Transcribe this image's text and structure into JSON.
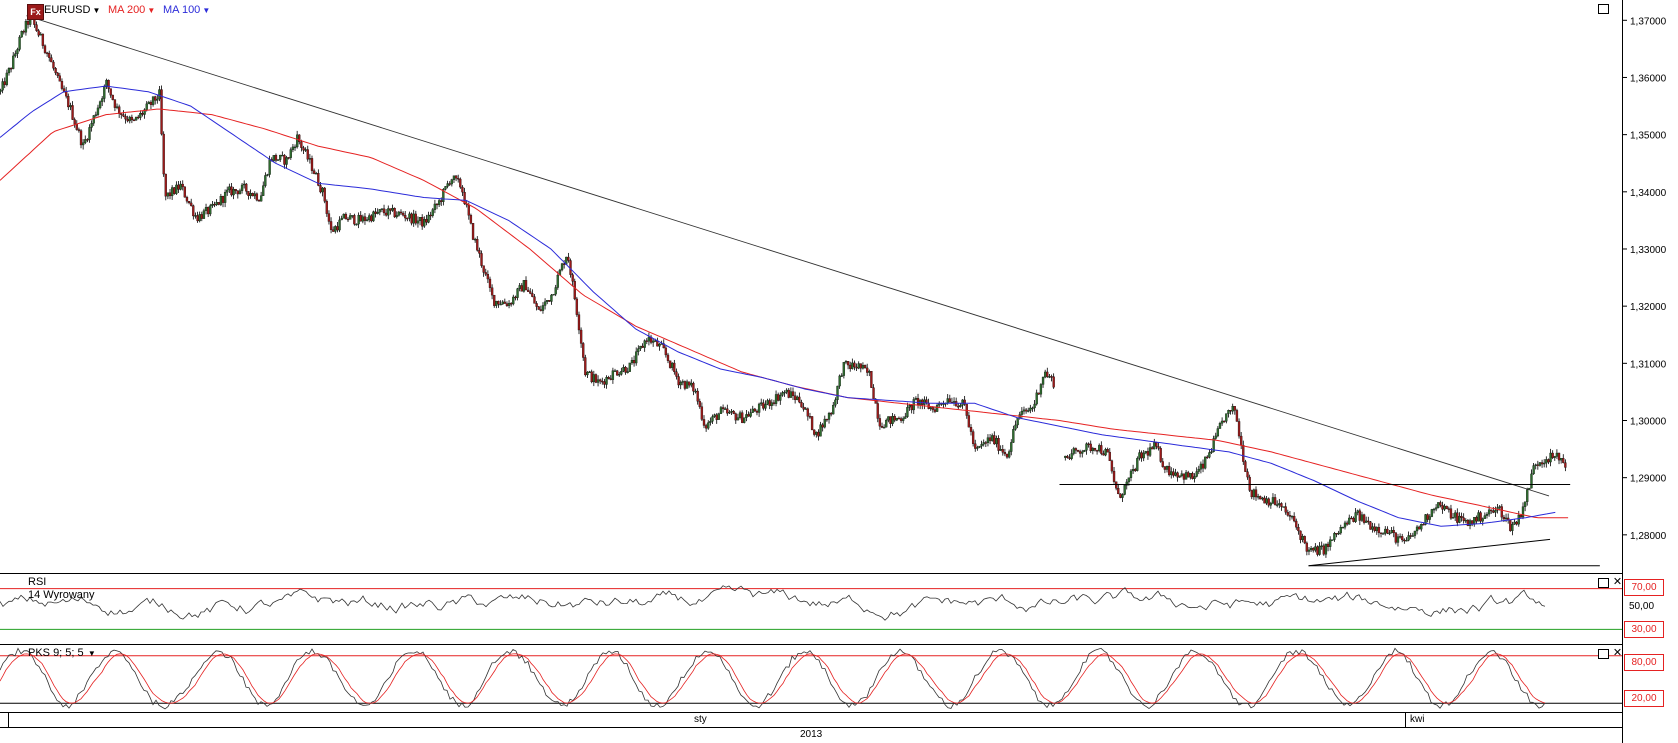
{
  "header": {
    "symbol": "EURUSD",
    "fx_logo": "Fx",
    "ma200_label": "MA 200",
    "ma100_label": "MA 100"
  },
  "rsi": {
    "title": "RSI",
    "subtitle": "14 Wyrowany",
    "levels": [
      "70,00",
      "50,00",
      "30,00"
    ]
  },
  "stoch": {
    "title": "PKS 9; 5; 5",
    "levels": [
      "80,00",
      "20,00"
    ]
  },
  "x_axis": {
    "sty": "sty",
    "kwi": "kwi",
    "year": "2013"
  },
  "colors": {
    "ma200": "#e52222",
    "ma100": "#2b2bd9",
    "up_candle": "#2e6b2e",
    "down_candle": "#9b1a1a",
    "rsi_high": "#e52222",
    "rsi_low": "#22a022"
  },
  "chart_data": {
    "type": "candlestick",
    "y_ticks": [
      "1,37000",
      "1,36000",
      "1,35000",
      "1,34000",
      "1,33000",
      "1,32000",
      "1,31000",
      "1,30000",
      "1,29000",
      "1,28000"
    ],
    "ylim": [
      1.2735,
      1.3725
    ],
    "close_path": [
      [
        0,
        1.3575
      ],
      [
        10,
        1.362
      ],
      [
        20,
        1.3675
      ],
      [
        28,
        1.3705
      ],
      [
        35,
        1.368
      ],
      [
        45,
        1.364
      ],
      [
        55,
        1.359
      ],
      [
        65,
        1.355
      ],
      [
        78,
        1.348
      ],
      [
        88,
        1.353
      ],
      [
        100,
        1.359
      ],
      [
        110,
        1.3545
      ],
      [
        125,
        1.352
      ],
      [
        140,
        1.355
      ],
      [
        150,
        1.357
      ],
      [
        155,
        1.339
      ],
      [
        170,
        1.341
      ],
      [
        185,
        1.3355
      ],
      [
        200,
        1.337
      ],
      [
        215,
        1.34
      ],
      [
        230,
        1.3405
      ],
      [
        245,
        1.339
      ],
      [
        255,
        1.346
      ],
      [
        270,
        1.3455
      ],
      [
        280,
        1.3495
      ],
      [
        295,
        1.344
      ],
      [
        305,
        1.3395
      ],
      [
        312,
        1.333
      ],
      [
        325,
        1.3355
      ],
      [
        340,
        1.335
      ],
      [
        360,
        1.3365
      ],
      [
        380,
        1.336
      ],
      [
        400,
        1.3345
      ],
      [
        415,
        1.3385
      ],
      [
        425,
        1.3425
      ],
      [
        435,
        1.341
      ],
      [
        445,
        1.333
      ],
      [
        455,
        1.327
      ],
      [
        465,
        1.321
      ],
      [
        480,
        1.3205
      ],
      [
        495,
        1.324
      ],
      [
        508,
        1.319
      ],
      [
        520,
        1.322
      ],
      [
        535,
        1.3295
      ],
      [
        545,
        1.318
      ],
      [
        552,
        1.3085
      ],
      [
        565,
        1.3065
      ],
      [
        580,
        1.3085
      ],
      [
        595,
        1.3095
      ],
      [
        610,
        1.3145
      ],
      [
        625,
        1.3125
      ],
      [
        640,
        1.307
      ],
      [
        655,
        1.3055
      ],
      [
        665,
        1.299
      ],
      [
        680,
        1.3015
      ],
      [
        700,
        1.3005
      ],
      [
        720,
        1.3025
      ],
      [
        740,
        1.305
      ],
      [
        755,
        1.3035
      ],
      [
        770,
        1.2975
      ],
      [
        785,
        1.302
      ],
      [
        795,
        1.3095
      ],
      [
        810,
        1.3095
      ],
      [
        820,
        1.308
      ],
      [
        830,
        1.2995
      ],
      [
        850,
        1.3005
      ],
      [
        865,
        1.3035
      ],
      [
        880,
        1.302
      ],
      [
        895,
        1.304
      ],
      [
        910,
        1.3025
      ],
      [
        920,
        1.2945
      ],
      [
        935,
        1.297
      ],
      [
        950,
        1.294
      ],
      [
        960,
        1.3005
      ],
      [
        975,
        1.3025
      ],
      [
        985,
        1.3085
      ],
      [
        995,
        1.3065
      ]
    ],
    "close_path_2": [
      [
        1005,
        1.2935
      ],
      [
        1020,
        1.295
      ],
      [
        1035,
        1.2955
      ],
      [
        1045,
        1.294
      ],
      [
        1055,
        1.2865
      ],
      [
        1065,
        1.2895
      ],
      [
        1075,
        1.2935
      ],
      [
        1090,
        1.2955
      ],
      [
        1100,
        1.2915
      ],
      [
        1115,
        1.2905
      ],
      [
        1125,
        1.29
      ],
      [
        1135,
        1.292
      ],
      [
        1145,
        1.296
      ],
      [
        1155,
        1.3005
      ],
      [
        1165,
        1.302
      ],
      [
        1172,
        1.2945
      ],
      [
        1180,
        1.2875
      ],
      [
        1190,
        1.2865
      ],
      [
        1205,
        1.2855
      ],
      [
        1220,
        1.2825
      ],
      [
        1235,
        1.277
      ],
      [
        1250,
        1.2775
      ],
      [
        1265,
        1.281
      ],
      [
        1280,
        1.2835
      ],
      [
        1295,
        1.2815
      ],
      [
        1310,
        1.2805
      ],
      [
        1325,
        1.2785
      ],
      [
        1340,
        1.2815
      ],
      [
        1355,
        1.2855
      ],
      [
        1370,
        1.2835
      ],
      [
        1385,
        1.282
      ],
      [
        1400,
        1.2835
      ],
      [
        1415,
        1.2845
      ],
      [
        1425,
        1.2815
      ],
      [
        1432,
        1.2825
      ],
      [
        1440,
        1.2865
      ],
      [
        1448,
        1.2925
      ],
      [
        1460,
        1.2935
      ],
      [
        1470,
        1.2935
      ],
      [
        1478,
        1.2925
      ]
    ],
    "ma200": [
      [
        0,
        1.342
      ],
      [
        50,
        1.3505
      ],
      [
        100,
        1.3535
      ],
      [
        150,
        1.3545
      ],
      [
        200,
        1.3535
      ],
      [
        250,
        1.351
      ],
      [
        300,
        1.348
      ],
      [
        350,
        1.346
      ],
      [
        400,
        1.342
      ],
      [
        450,
        1.337
      ],
      [
        500,
        1.33
      ],
      [
        550,
        1.322
      ],
      [
        600,
        1.3165
      ],
      [
        650,
        1.3125
      ],
      [
        700,
        1.3085
      ],
      [
        750,
        1.306
      ],
      [
        800,
        1.304
      ],
      [
        850,
        1.303
      ],
      [
        900,
        1.302
      ],
      [
        950,
        1.301
      ],
      [
        1000,
        1.3
      ],
      [
        1050,
        1.2985
      ],
      [
        1100,
        1.2975
      ],
      [
        1150,
        1.2965
      ],
      [
        1200,
        1.2945
      ],
      [
        1250,
        1.292
      ],
      [
        1300,
        1.2895
      ],
      [
        1350,
        1.287
      ],
      [
        1400,
        1.285
      ],
      [
        1450,
        1.283
      ],
      [
        1480,
        1.283
      ]
    ],
    "ma100": [
      [
        0,
        1.3495
      ],
      [
        30,
        1.354
      ],
      [
        60,
        1.3575
      ],
      [
        100,
        1.3585
      ],
      [
        140,
        1.3575
      ],
      [
        180,
        1.355
      ],
      [
        220,
        1.35
      ],
      [
        260,
        1.345
      ],
      [
        300,
        1.3415
      ],
      [
        350,
        1.3405
      ],
      [
        400,
        1.339
      ],
      [
        440,
        1.3385
      ],
      [
        480,
        1.335
      ],
      [
        520,
        1.33
      ],
      [
        560,
        1.3225
      ],
      [
        600,
        1.316
      ],
      [
        640,
        1.312
      ],
      [
        680,
        1.309
      ],
      [
        720,
        1.3075
      ],
      [
        760,
        1.3055
      ],
      [
        800,
        1.304
      ],
      [
        840,
        1.3035
      ],
      [
        880,
        1.303
      ],
      [
        920,
        1.303
      ],
      [
        960,
        1.3005
      ],
      [
        1000,
        1.299
      ],
      [
        1040,
        1.2975
      ],
      [
        1080,
        1.2965
      ],
      [
        1120,
        1.2955
      ],
      [
        1160,
        1.2945
      ],
      [
        1200,
        1.2925
      ],
      [
        1240,
        1.2895
      ],
      [
        1280,
        1.286
      ],
      [
        1320,
        1.283
      ],
      [
        1360,
        1.2815
      ],
      [
        1400,
        1.282
      ],
      [
        1440,
        1.283
      ],
      [
        1470,
        1.284
      ]
    ],
    "trendline": {
      "x1": 25,
      "y1": 1.3708,
      "x2": 1462,
      "y2": 1.2868
    },
    "support_line": {
      "x1": 1000,
      "x2": 1482,
      "y": 1.2888
    },
    "lower_support": {
      "x1": 1235,
      "x2": 1510,
      "y": 1.2746
    },
    "rising_support": {
      "x1": 1235,
      "y1": 1.2746,
      "x2": 1463,
      "y2": 1.2792
    }
  }
}
